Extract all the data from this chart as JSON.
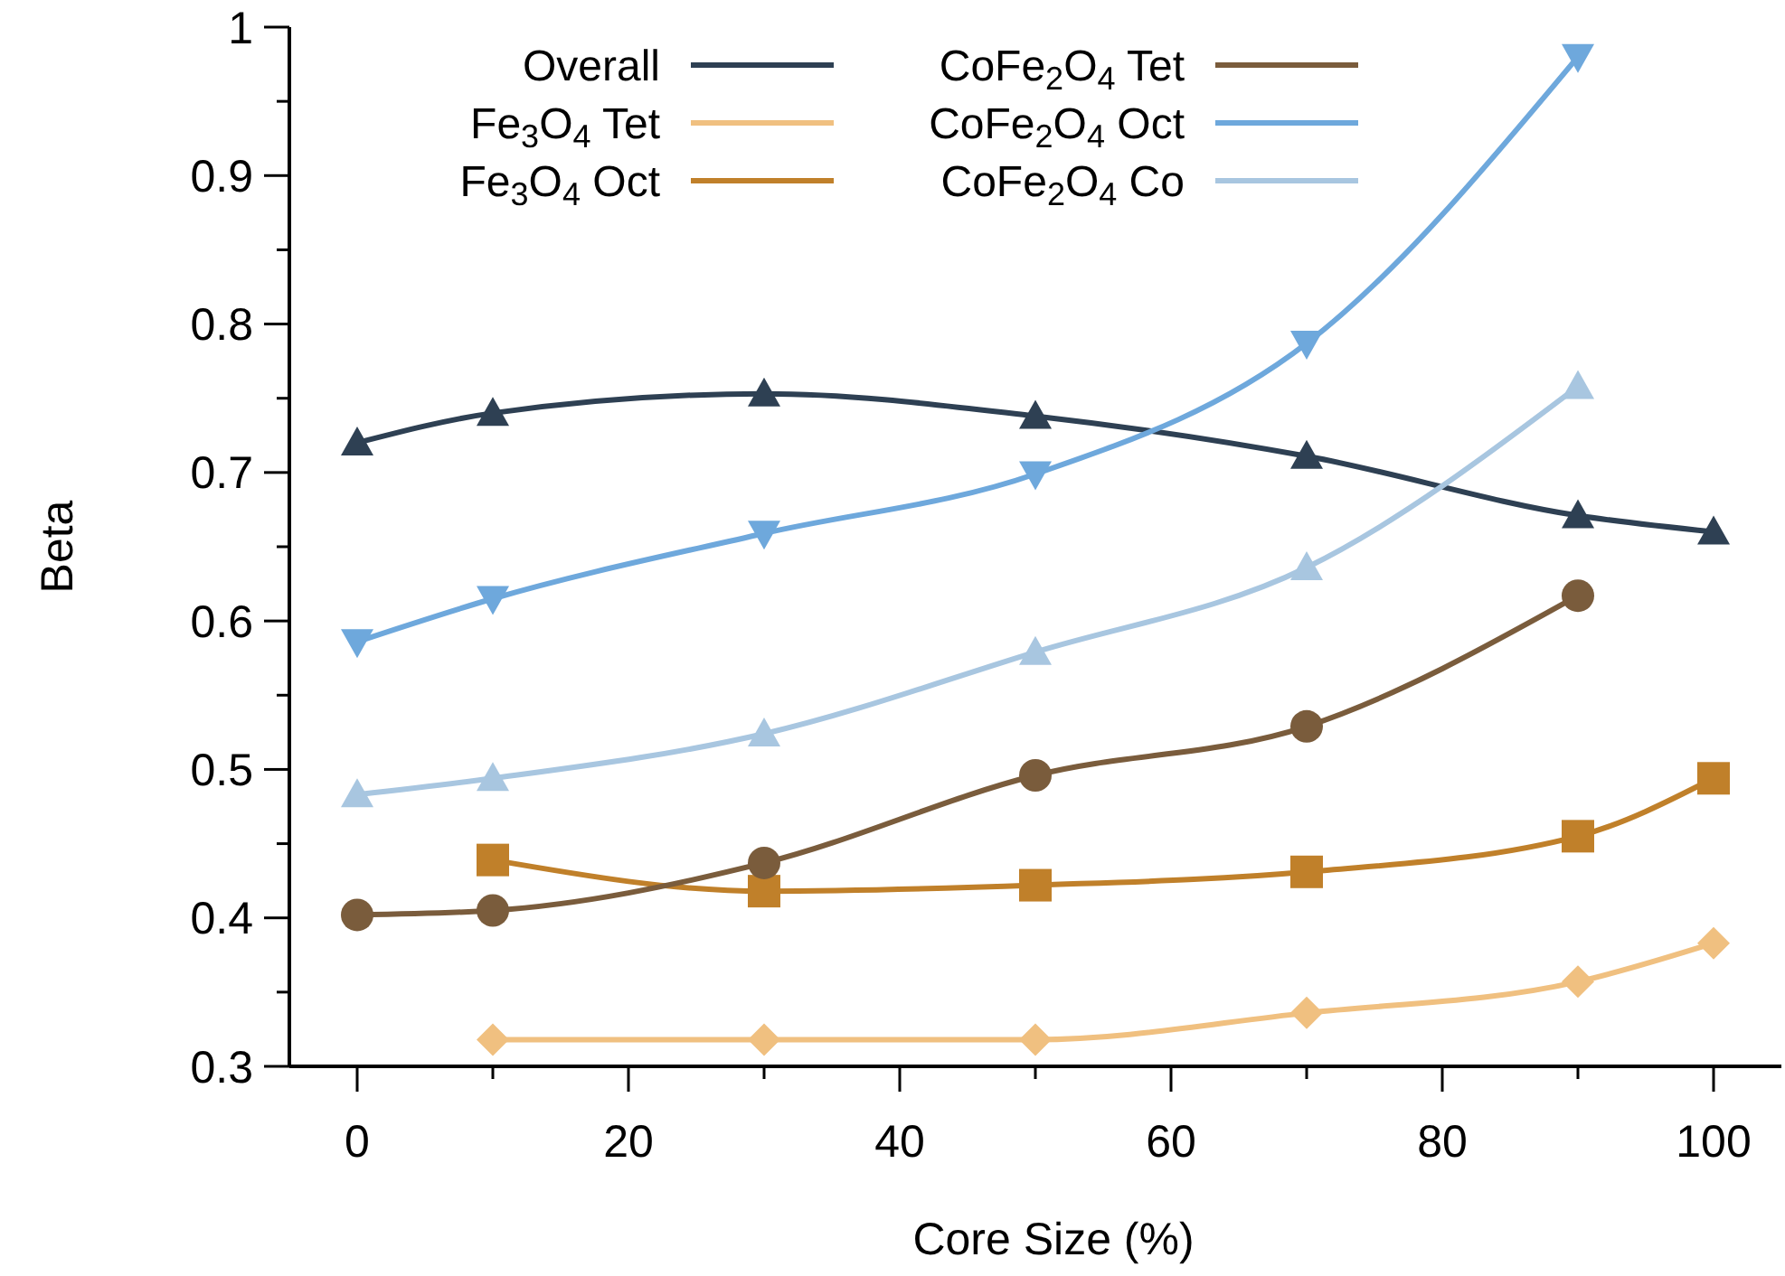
{
  "chart_data": {
    "type": "line",
    "xlabel": "Core Size (%)",
    "ylabel": "Beta",
    "xlim": [
      -5,
      105
    ],
    "ylim": [
      0.3,
      1
    ],
    "xticks": [
      0,
      {
        "value": 10,
        "label": null
      },
      20,
      {
        "value": 30,
        "label": null
      },
      40,
      {
        "value": 50,
        "label": null
      },
      60,
      {
        "value": 70,
        "label": null
      },
      80,
      {
        "value": 90,
        "label": null
      },
      100
    ],
    "yticks": [
      0.3,
      {
        "value": 0.35,
        "label": null
      },
      0.4,
      {
        "value": 0.45,
        "label": null
      },
      0.5,
      {
        "value": 0.55,
        "label": null
      },
      0.6,
      {
        "value": 0.65,
        "label": null
      },
      0.7,
      {
        "value": 0.75,
        "label": null
      },
      0.8,
      {
        "value": 0.85,
        "label": null
      },
      0.9,
      {
        "value": 0.95,
        "label": null
      },
      1
    ],
    "grid": false,
    "legend": "top",
    "series": [
      {
        "name": "Overall",
        "color": "#2e4053",
        "marker": "triangle",
        "x": [
          0,
          10,
          30,
          50,
          70,
          90,
          100
        ],
        "values": [
          0.72,
          0.74,
          0.753,
          0.738,
          0.711,
          0.671,
          0.66
        ]
      },
      {
        "name": "Fe$_{3}$O$_{4}$ Tet",
        "color": "#f0c080",
        "marker": "diamond",
        "x": [
          10,
          30,
          50,
          70,
          90,
          100
        ],
        "values": [
          0.318,
          0.318,
          0.318,
          0.336,
          0.357,
          0.383
        ]
      },
      {
        "name": "Fe$_{3}$O$_{4}$ Oct",
        "color": "#c0802a",
        "marker": "square",
        "x": [
          10,
          30,
          50,
          70,
          90,
          100
        ],
        "values": [
          0.439,
          0.418,
          0.422,
          0.431,
          0.455,
          0.494
        ]
      },
      {
        "name": "CoFe$_{2}$O$_{4}$ Tet",
        "color": "#7a5c3c",
        "marker": "circle",
        "x": [
          0,
          10,
          30,
          50,
          70,
          90
        ],
        "values": [
          0.402,
          0.405,
          0.437,
          0.496,
          0.529,
          0.617
        ]
      },
      {
        "name": "CoFe$_{2}$O$_{4}$ Oct",
        "color": "#6ea8dc",
        "marker": "triangle-down",
        "x": [
          0,
          10,
          30,
          50,
          70,
          90
        ],
        "values": [
          0.586,
          0.615,
          0.659,
          0.699,
          0.787,
          0.98
        ]
      },
      {
        "name": "CoFe$_{2}$O$_{4}$ Co",
        "color": "#a8c6e0",
        "marker": "triangle",
        "x": [
          0,
          10,
          30,
          50,
          70,
          90
        ],
        "values": [
          0.483,
          0.494,
          0.524,
          0.579,
          0.636,
          0.758
        ]
      }
    ]
  }
}
